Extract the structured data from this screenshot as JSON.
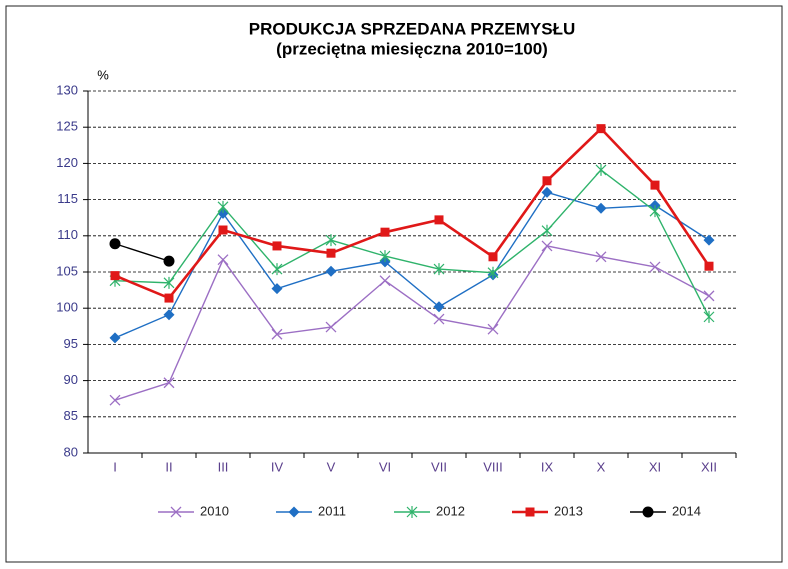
{
  "chart_data": {
    "type": "line",
    "title": "PRODUKCJA SPRZEDANA PRZEMYSŁU",
    "subtitle": "(przeciętna miesięczna 2010=100)",
    "y_label": "%",
    "categories": [
      "I",
      "II",
      "III",
      "IV",
      "V",
      "VI",
      "VII",
      "VIII",
      "IX",
      "X",
      "XI",
      "XII"
    ],
    "ylim": [
      80,
      130
    ],
    "yticks": [
      80,
      85,
      90,
      95,
      100,
      105,
      110,
      115,
      120,
      125,
      130
    ],
    "grid": true,
    "legend": "bottom",
    "series": [
      {
        "name": "2010",
        "color": "#9c6fc4",
        "marker": "x",
        "values": [
          87.3,
          89.7,
          106.7,
          96.4,
          97.4,
          103.8,
          98.5,
          97.1,
          108.6,
          107.1,
          105.7,
          101.7
        ]
      },
      {
        "name": "2011",
        "color": "#1f6fc4",
        "marker": "diamond",
        "values": [
          95.9,
          99.1,
          113.1,
          102.7,
          105.1,
          106.4,
          100.2,
          104.6,
          116.0,
          113.8,
          114.2,
          109.4
        ]
      },
      {
        "name": "2012",
        "color": "#2fb36b",
        "marker": "asterisk",
        "values": [
          103.8,
          103.5,
          114.0,
          105.4,
          109.4,
          107.2,
          105.4,
          104.9,
          110.7,
          119.1,
          113.4,
          98.8
        ]
      },
      {
        "name": "2013",
        "color": "#e01818",
        "marker": "square",
        "values": [
          104.5,
          101.4,
          110.8,
          108.6,
          107.6,
          110.5,
          112.2,
          107.1,
          117.6,
          124.8,
          117.0,
          105.8
        ]
      },
      {
        "name": "2014",
        "color": "#000000",
        "marker": "circle",
        "values": [
          108.9,
          106.5,
          null,
          null,
          null,
          null,
          null,
          null,
          null,
          null,
          null,
          null
        ]
      }
    ]
  }
}
